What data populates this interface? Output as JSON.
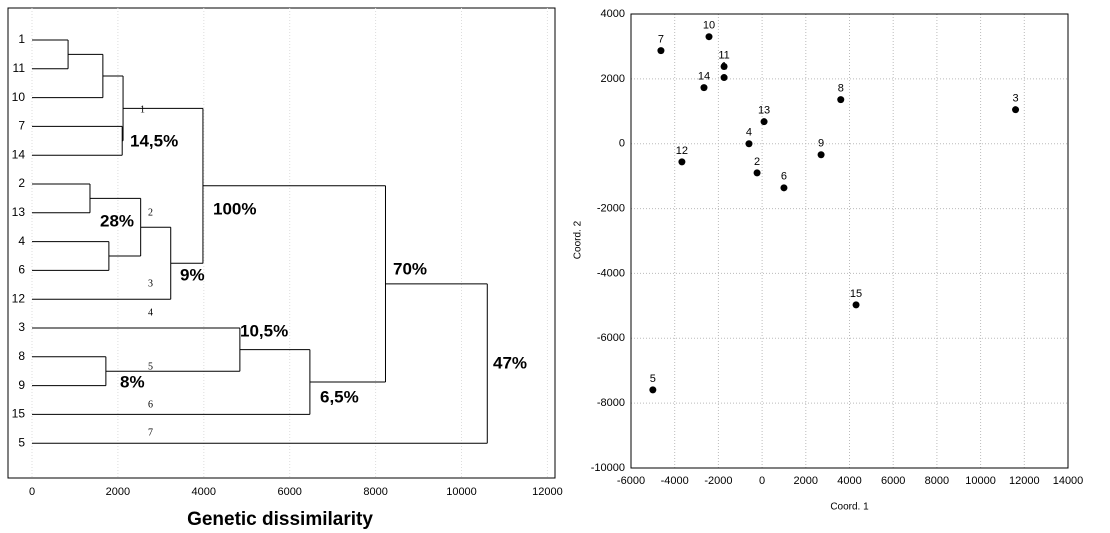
{
  "chart_data": [
    {
      "type": "dendrogram",
      "xlabel": "Genetic dissimilarity",
      "xlim": [
        0,
        12200
      ],
      "xticks": [
        0,
        2000,
        4000,
        6000,
        8000,
        10000,
        12000
      ],
      "grid": true,
      "color": "#000000",
      "tree": {
        "height": 10600,
        "children": [
          {
            "height": 8230,
            "children": [
              {
                "height": 3980,
                "children": [
                  {
                    "height": 2120,
                    "children": [
                      {
                        "height": 1650,
                        "children": [
                          {
                            "height": 840,
                            "children": [
                              {
                                "label": "1"
                              },
                              {
                                "label": "11"
                              }
                            ]
                          },
                          {
                            "label": "10"
                          }
                        ]
                      },
                      {
                        "height": 2100,
                        "children": [
                          {
                            "label": "7"
                          },
                          {
                            "label": "14"
                          }
                        ]
                      }
                    ]
                  },
                  {
                    "height": 3230,
                    "children": [
                      {
                        "height": 2530,
                        "children": [
                          {
                            "height": 1350,
                            "children": [
                              {
                                "label": "2"
                              },
                              {
                                "label": "13"
                              }
                            ]
                          },
                          {
                            "height": 1790,
                            "children": [
                              {
                                "label": "4"
                              },
                              {
                                "label": "6"
                              }
                            ]
                          }
                        ]
                      },
                      {
                        "label": "12"
                      }
                    ]
                  }
                ]
              },
              {
                "height": 6470,
                "children": [
                  {
                    "height": 4840,
                    "children": [
                      {
                        "label": "3"
                      },
                      {
                        "height": 1720,
                        "children": [
                          {
                            "label": "8"
                          },
                          {
                            "label": "9"
                          }
                        ]
                      }
                    ]
                  },
                  {
                    "label": "15"
                  }
                ]
              }
            ]
          },
          {
            "label": "5"
          }
        ]
      },
      "annotations": [
        "14,5%",
        "28%",
        "100%",
        "9%",
        "10,5%",
        "8%",
        "6,5%",
        "70%",
        "47%"
      ],
      "cluster_numbers": [
        "1",
        "2",
        "3",
        "4",
        "5",
        "6",
        "7"
      ]
    },
    {
      "type": "scatter",
      "xlabel": "Coord. 1",
      "ylabel": "Coord. 2",
      "xlim": [
        -6000,
        14000
      ],
      "ylim": [
        -10000,
        4000
      ],
      "xticks": [
        -6000,
        -4000,
        -2000,
        0,
        2000,
        4000,
        6000,
        8000,
        10000,
        12000,
        14000
      ],
      "yticks": [
        -10000,
        -8000,
        -6000,
        -4000,
        -2000,
        0,
        2000,
        4000
      ],
      "grid": true,
      "color": "#000000",
      "labels": [
        "1",
        "2",
        "3",
        "4",
        "5",
        "6",
        "7",
        "8",
        "9",
        "10",
        "11",
        "12",
        "13",
        "14",
        "15"
      ],
      "x": [
        -1740,
        -230,
        11600,
        -600,
        -5000,
        1000,
        -4630,
        3600,
        2700,
        -2430,
        -1740,
        -3670,
        90,
        -2660,
        4300
      ],
      "y": [
        2040,
        -900,
        1050,
        0,
        -7590,
        -1360,
        2870,
        1360,
        -340,
        3300,
        2380,
        -560,
        680,
        1730,
        -4970
      ]
    }
  ]
}
